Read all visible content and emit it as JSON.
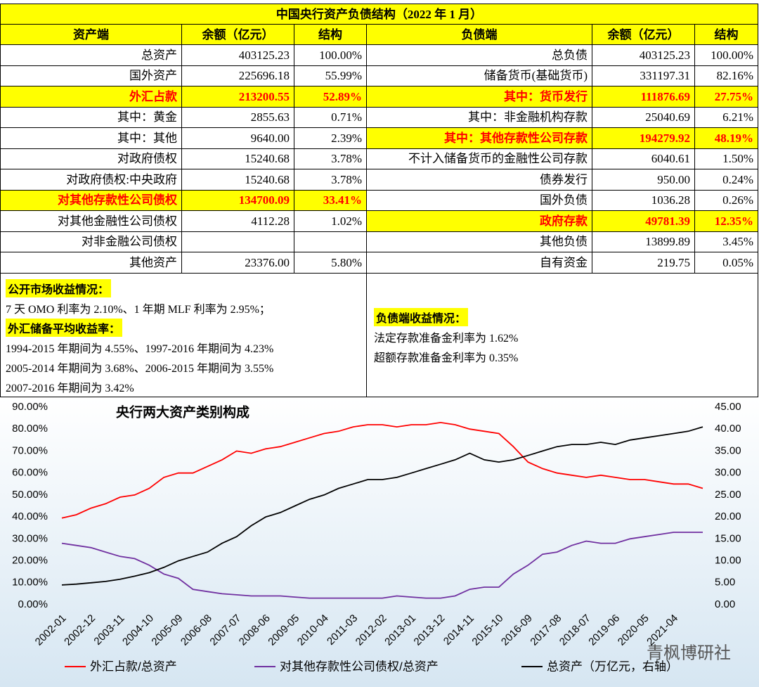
{
  "table": {
    "title": "中国央行资产负债结构（2022 年 1 月）",
    "headers": [
      "资产端",
      "余额（亿元）",
      "结构",
      "负债端",
      "余额（亿元）",
      "结构"
    ],
    "left_rows": [
      {
        "label": "总资产",
        "amount": "403125.23",
        "share": "100.00%",
        "highlight": false
      },
      {
        "label": "国外资产",
        "amount": "225696.18",
        "share": "55.99%",
        "highlight": false
      },
      {
        "label": "外汇占款",
        "amount": "213200.55",
        "share": "52.89%",
        "highlight": true
      },
      {
        "label": "其中：黄金",
        "amount": "2855.63",
        "share": "0.71%",
        "highlight": false
      },
      {
        "label": "其中：其他",
        "amount": "9640.00",
        "share": "2.39%",
        "highlight": false
      },
      {
        "label": "对政府债权",
        "amount": "15240.68",
        "share": "3.78%",
        "highlight": false
      },
      {
        "label": "对政府债权:中央政府",
        "amount": "15240.68",
        "share": "3.78%",
        "highlight": false
      },
      {
        "label": "对其他存款性公司债权",
        "amount": "134700.09",
        "share": "33.41%",
        "highlight": true
      },
      {
        "label": "对其他金融性公司债权",
        "amount": "4112.28",
        "share": "1.02%",
        "highlight": false
      },
      {
        "label": "对非金融公司债权",
        "amount": null,
        "share": null,
        "highlight": false
      },
      {
        "label": "其他资产",
        "amount": "23376.00",
        "share": "5.80%",
        "highlight": false
      }
    ],
    "right_rows": [
      {
        "label": "总负债",
        "amount": "403125.23",
        "share": "100.00%",
        "highlight": false
      },
      {
        "label": "储备货币(基础货币)",
        "amount": "331197.31",
        "share": "82.16%",
        "highlight": false
      },
      {
        "label": "其中：货币发行",
        "amount": "111876.69",
        "share": "27.75%",
        "highlight": true
      },
      {
        "label": "其中：非金融机构存款",
        "amount": "25040.69",
        "share": "6.21%",
        "highlight": false
      },
      {
        "label": "其中：其他存款性公司存款",
        "amount": "194279.92",
        "share": "48.19%",
        "highlight": true
      },
      {
        "label": "不计入储备货币的金融性公司存款",
        "amount": "6040.61",
        "share": "1.50%",
        "highlight": false
      },
      {
        "label": "债券发行",
        "amount": "950.00",
        "share": "0.24%",
        "highlight": false
      },
      {
        "label": "国外负债",
        "amount": "1036.28",
        "share": "0.26%",
        "highlight": false
      },
      {
        "label": "政府存款",
        "amount": "49781.39",
        "share": "12.35%",
        "highlight": true
      },
      {
        "label": "其他负债",
        "amount": "13899.89",
        "share": "3.45%",
        "highlight": false
      },
      {
        "label": "自有资金",
        "amount": "219.75",
        "share": "0.05%",
        "highlight": false
      }
    ]
  },
  "notes": {
    "left": [
      {
        "text": "公开市场收益情况：",
        "highlight": true
      },
      {
        "text": "7 天 OMO 利率为 2.10%、1 年期 MLF 利率为 2.95%；",
        "highlight": false
      },
      {
        "text": "外汇储备平均收益率：",
        "highlight": true
      },
      {
        "text": "1994-2015 年期间为 4.55%、1997-2016 年期间为 4.23%",
        "highlight": false
      },
      {
        "text": "2005-2014 年期间为 3.68%、2006-2015 年期间为 3.55%",
        "highlight": false
      },
      {
        "text": "2007-2016 年期间为 3.42%",
        "highlight": false
      }
    ],
    "right": [
      {
        "text": "负债端收益情况：",
        "highlight": true
      },
      {
        "text": "法定存款准备金利率为 1.62%",
        "highlight": false
      },
      {
        "text": "超额存款准备金利率为 0.35%",
        "highlight": false
      }
    ]
  },
  "chart_data": {
    "type": "line",
    "title": "央行两大资产类别构成",
    "watermark": "青枫博研社",
    "categories": [
      "2002-01",
      null,
      "2002-12",
      null,
      "2003-11",
      null,
      "2004-10",
      null,
      "2005-09",
      null,
      "2006-08",
      null,
      "2007-07",
      null,
      "2008-06",
      null,
      "2009-05",
      null,
      "2010-04",
      null,
      "2011-03",
      null,
      "2012-02",
      null,
      "2013-01",
      null,
      "2013-12",
      null,
      "2014-11",
      null,
      "2015-10",
      null,
      "2016-09",
      null,
      "2017-08",
      null,
      "2018-07",
      null,
      "2019-06",
      null,
      "2020-05",
      null,
      "2021-04",
      null,
      null
    ],
    "series": [
      {
        "name": "外汇占款/总资产",
        "color": "#ff0000",
        "values": [
          39.5,
          41,
          44,
          46,
          49,
          50,
          53,
          58,
          60,
          60,
          63,
          66,
          70,
          69,
          71,
          72,
          74,
          76,
          78,
          79,
          81,
          82,
          82,
          81,
          82,
          82,
          83,
          82,
          80,
          79,
          78,
          72,
          65,
          62,
          60,
          59,
          58,
          59,
          58,
          57,
          57,
          56,
          55,
          55,
          53
        ]
      },
      {
        "name": "对其他存款性公司债权/总资产",
        "color": "#7030a0",
        "values": [
          28,
          27,
          26,
          24,
          22,
          21,
          18,
          14,
          12,
          7,
          6,
          5,
          4.5,
          4,
          4,
          4,
          3.5,
          3,
          3,
          3,
          3,
          3,
          3,
          4,
          3.5,
          3,
          3,
          4,
          7,
          8,
          8,
          14,
          18,
          23,
          24,
          27,
          29,
          28,
          28,
          30,
          31,
          32,
          33,
          33,
          33
        ]
      },
      {
        "name": "总资产（万亿元，右轴）",
        "color": "#000000",
        "axis": "y2",
        "values": [
          4.5,
          4.7,
          5,
          5.3,
          5.8,
          6.5,
          7.3,
          8.5,
          10,
          11,
          12,
          14,
          15.5,
          18,
          20,
          21,
          22.5,
          24,
          25,
          26.5,
          27.5,
          28.5,
          28.5,
          29,
          30,
          31,
          32,
          33,
          34.5,
          33,
          32.5,
          33,
          34,
          35,
          36,
          36.5,
          36.5,
          37,
          36.5,
          37.5,
          38,
          38.5,
          39,
          39.5,
          40.5
        ]
      }
    ],
    "ylim": [
      0,
      90
    ],
    "yticks": [
      {
        "value": 0,
        "label": "0.00%"
      },
      {
        "value": 10,
        "label": "10.00%"
      },
      {
        "value": 20,
        "label": "20.00%"
      },
      {
        "value": 30,
        "label": "30.00%"
      },
      {
        "value": 40,
        "label": "40.00%"
      },
      {
        "value": 50,
        "label": "50.00%"
      },
      {
        "value": 60,
        "label": "60.00%"
      },
      {
        "value": 70,
        "label": "70.00%"
      },
      {
        "value": 80,
        "label": "80.00%"
      },
      {
        "value": 90,
        "label": "90.00%"
      }
    ],
    "y2lim": [
      0,
      45
    ],
    "y2ticks": [
      {
        "value": 0,
        "label": "0.00"
      },
      {
        "value": 5,
        "label": "5.00"
      },
      {
        "value": 10,
        "label": "10.00"
      },
      {
        "value": 15,
        "label": "15.00"
      },
      {
        "value": 20,
        "label": "20.00"
      },
      {
        "value": 25,
        "label": "25.00"
      },
      {
        "value": 30,
        "label": "30.00"
      },
      {
        "value": 35,
        "label": "35.00"
      },
      {
        "value": 40,
        "label": "40.00"
      },
      {
        "value": 45,
        "label": "45.00"
      }
    ],
    "grid": false
  }
}
